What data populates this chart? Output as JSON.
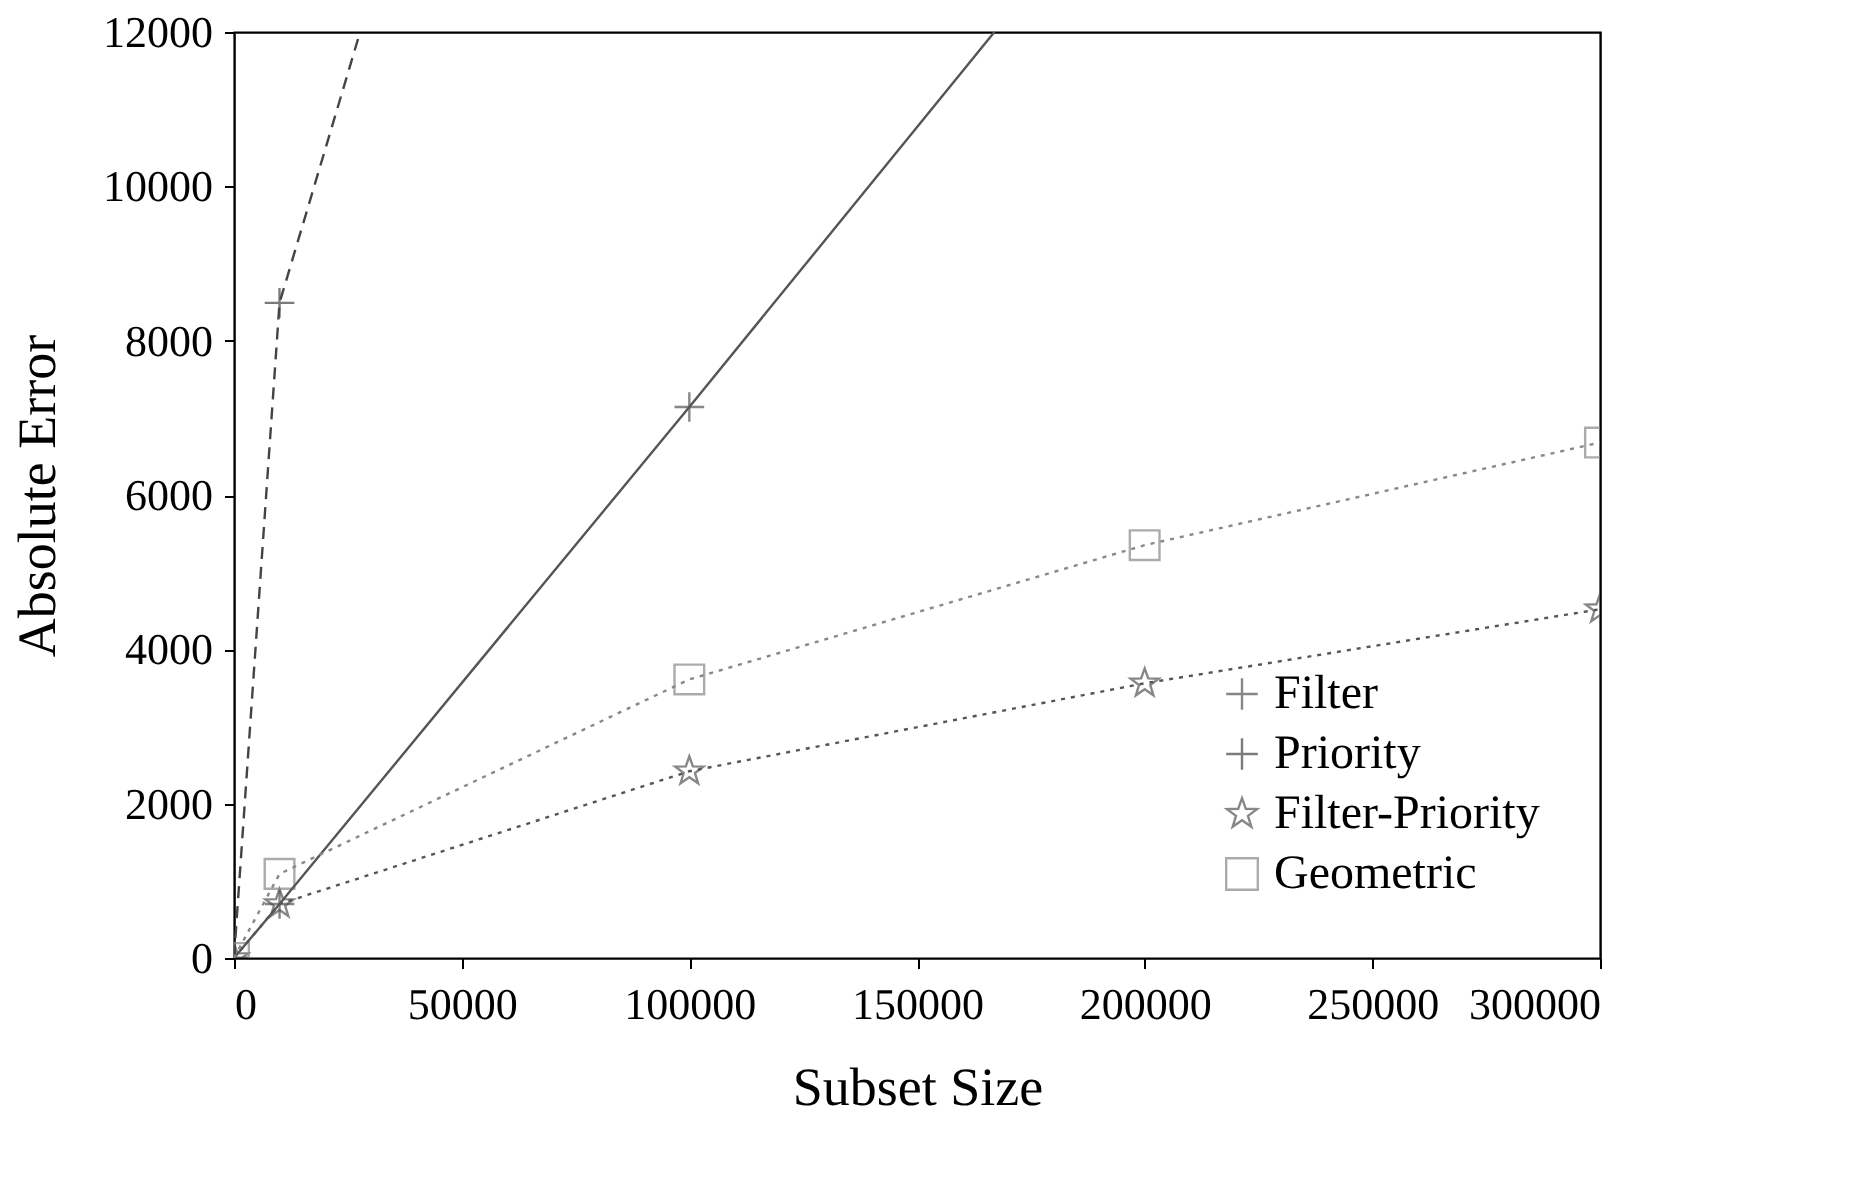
{
  "chart_data": {
    "type": "line",
    "xlabel": "Subset Size",
    "ylabel": "Absolute Error",
    "xlim": [
      0,
      300000
    ],
    "xticks": [
      0,
      50000,
      100000,
      150000,
      200000,
      250000,
      300000
    ],
    "ylim": [
      0,
      12000
    ],
    "yticks": [
      0,
      2000,
      4000,
      6000,
      8000,
      10000,
      12000
    ],
    "grid": false,
    "legend": "bottom right",
    "series": [
      {
        "name": "Filter",
        "color": "#555555",
        "line_style": "solid",
        "marker": "cross",
        "x": [
          0,
          10000,
          100000,
          167000
        ],
        "values": [
          0,
          700,
          7140,
          12000
        ]
      },
      {
        "name": "Priority",
        "color": "#444444",
        "line_style": "dashed",
        "marker": "cross",
        "x": [
          0,
          10000,
          27700
        ],
        "values": [
          0,
          8490,
          12000
        ]
      },
      {
        "name": "Filter-Priority",
        "color": "#555555",
        "line_style": "dotted",
        "marker": "star",
        "x": [
          0,
          10000,
          100000,
          200000,
          300000
        ],
        "values": [
          0,
          700,
          2420,
          3560,
          4520
        ]
      },
      {
        "name": "Geometric",
        "color": "#888888",
        "line_style": "dotted",
        "marker": "square",
        "x": [
          0,
          10000,
          100000,
          200000,
          300000
        ],
        "values": [
          0,
          1090,
          3610,
          5350,
          6680
        ]
      }
    ]
  }
}
